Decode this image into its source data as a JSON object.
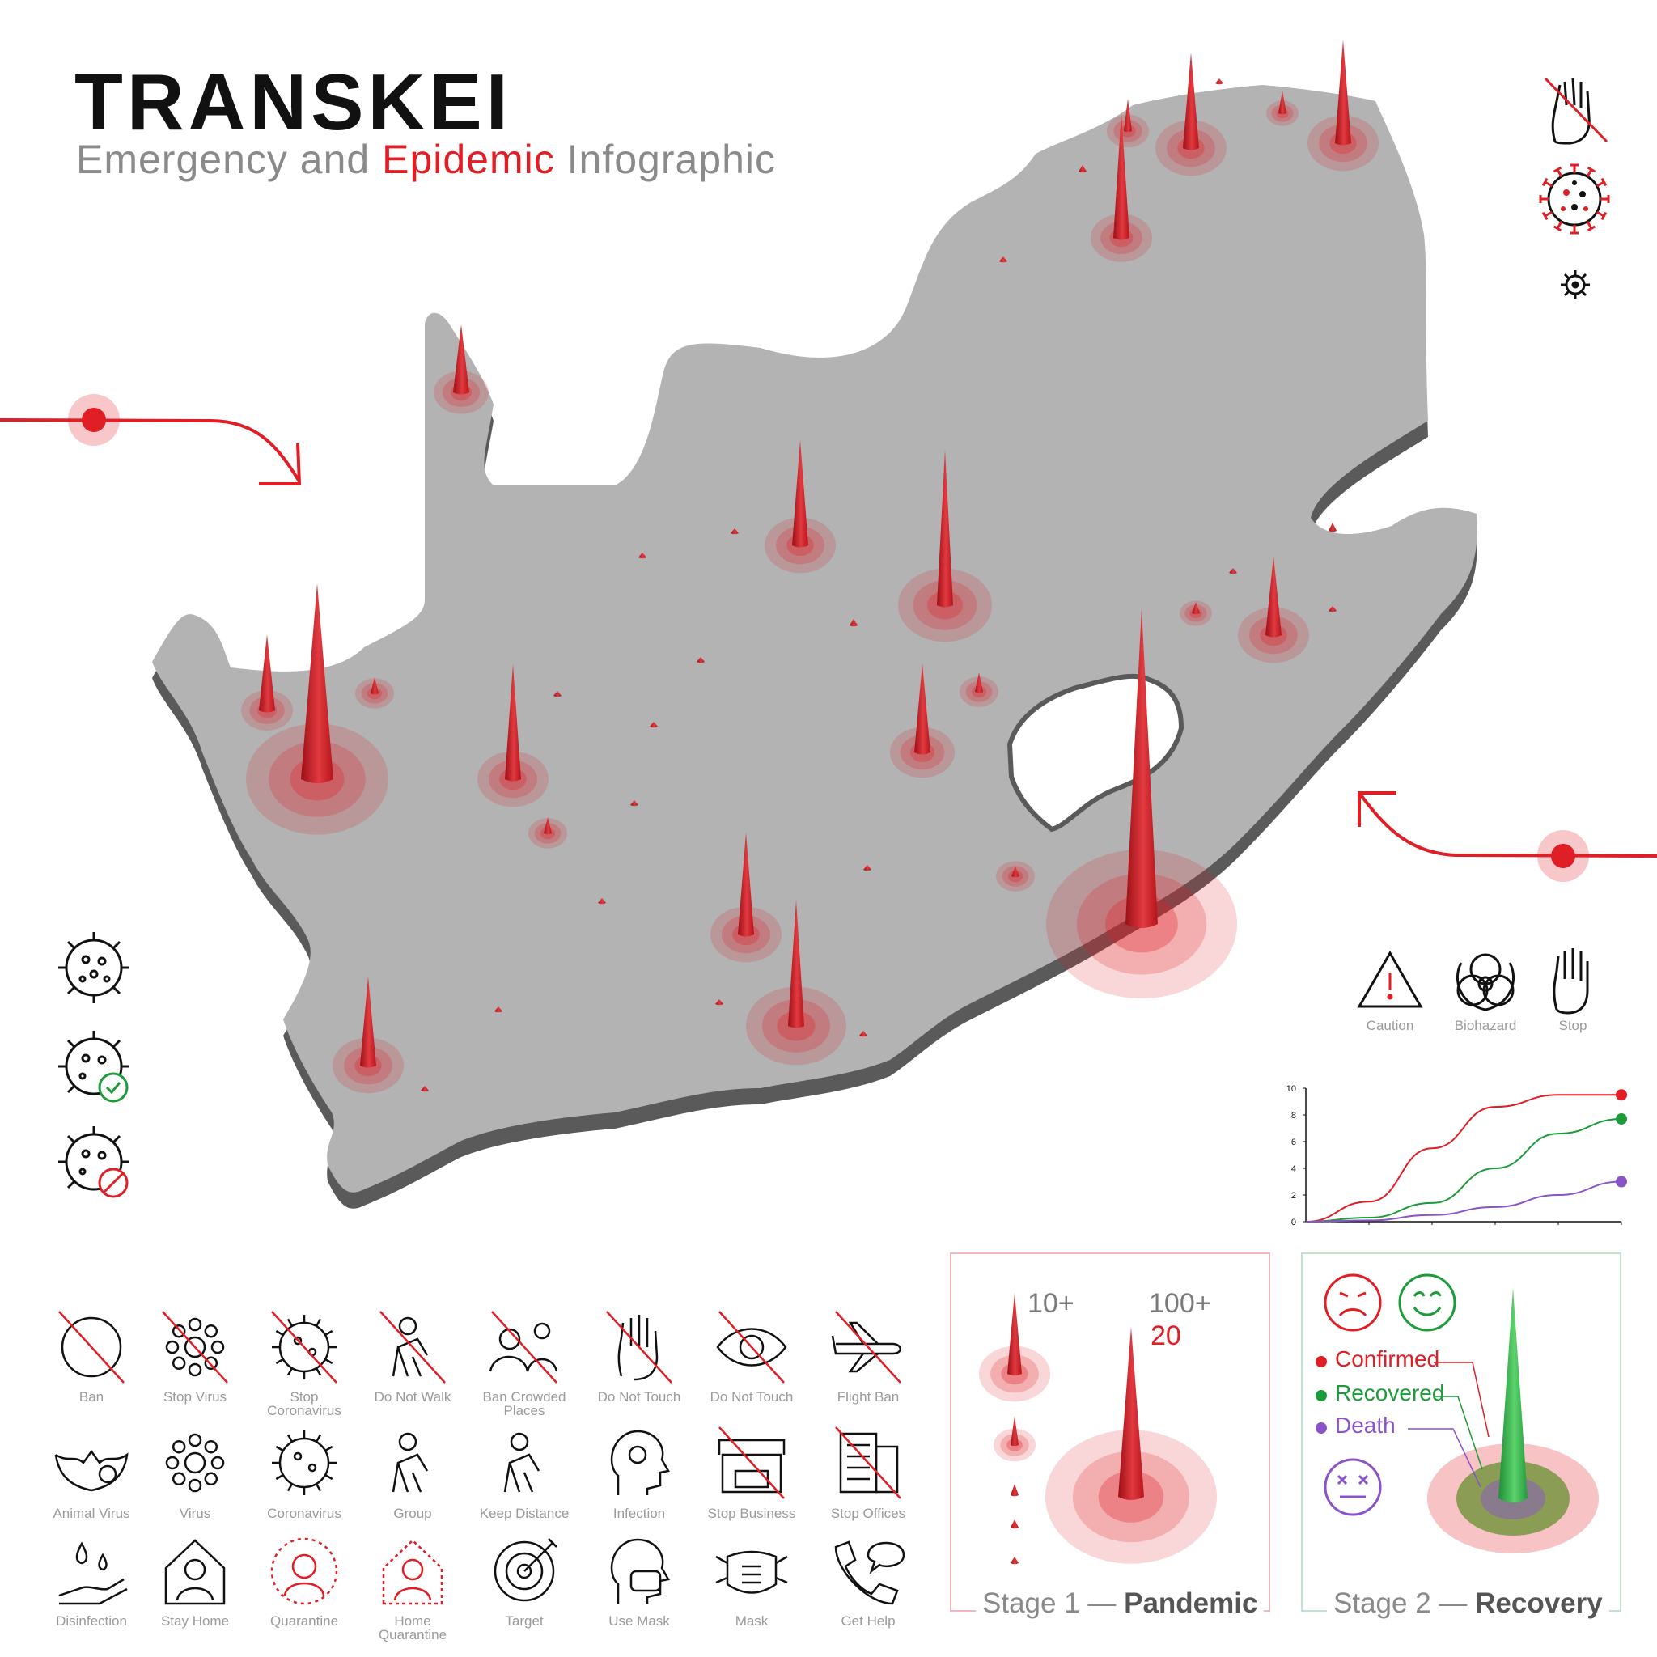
{
  "header": {
    "title": "TRANSKEI",
    "subtitle_pre": "Emergency and ",
    "subtitle_accent": "Epidemic",
    "subtitle_post": " Infographic"
  },
  "colors": {
    "accent": "#e01e26",
    "map_fill": "#b3b3b3",
    "map_shadow": "#5c5c5c",
    "confirmed": "#e01e26",
    "recovered": "#1c9b3a",
    "death": "#8a54c8"
  },
  "hazard_icons": [
    {
      "icon": "caution-icon",
      "label": "Caution"
    },
    {
      "icon": "biohazard-icon",
      "label": "Biohazard"
    },
    {
      "icon": "stop-hand-icon",
      "label": "Stop"
    }
  ],
  "mini_chart": {
    "chart_data": {
      "type": "line",
      "ylim": [
        0,
        10
      ],
      "yticks": [
        "0",
        "2",
        "4",
        "6",
        "8",
        "10"
      ],
      "series": [
        {
          "color": "#e01e26",
          "x": [
            0,
            1,
            2,
            3,
            4,
            5
          ],
          "values": [
            0,
            1.5,
            5.5,
            8.6,
            9.5,
            9.5
          ]
        },
        {
          "color": "#1c9b3a",
          "x": [
            0,
            1,
            2,
            3,
            4,
            5
          ],
          "values": [
            0,
            0.3,
            1.4,
            4.0,
            6.6,
            7.7
          ]
        },
        {
          "color": "#8a54c8",
          "x": [
            0,
            1,
            2,
            3,
            4,
            5
          ],
          "values": [
            0,
            0.1,
            0.5,
            1.1,
            2.0,
            3.0
          ]
        }
      ]
    }
  },
  "icon_grid": [
    {
      "icon": "ban-icon",
      "label": "Ban"
    },
    {
      "icon": "stop-virus-icon",
      "label": "Stop Virus"
    },
    {
      "icon": "stop-coronavirus-icon",
      "label": "Stop\nCoronavirus"
    },
    {
      "icon": "do-not-walk-icon",
      "label": "Do Not Walk"
    },
    {
      "icon": "ban-crowded-places-icon",
      "label": "Ban Crowded\nPlaces"
    },
    {
      "icon": "do-not-touch-hand-icon",
      "label": "Do Not Touch"
    },
    {
      "icon": "do-not-touch-eye-icon",
      "label": "Do Not Touch"
    },
    {
      "icon": "flight-ban-icon",
      "label": "Flight Ban"
    },
    {
      "icon": "animal-virus-icon",
      "label": "Animal Virus"
    },
    {
      "icon": "virus-icon",
      "label": "Virus"
    },
    {
      "icon": "coronavirus-icon",
      "label": "Coronavirus"
    },
    {
      "icon": "group-icon",
      "label": "Group"
    },
    {
      "icon": "keep-distance-icon",
      "label": "Keep Distance"
    },
    {
      "icon": "infection-icon",
      "label": "Infection"
    },
    {
      "icon": "stop-business-icon",
      "label": "Stop Business"
    },
    {
      "icon": "stop-offices-icon",
      "label": "Stop Offices"
    },
    {
      "icon": "disinfection-icon",
      "label": "Disinfection"
    },
    {
      "icon": "stay-home-icon",
      "label": "Stay Home"
    },
    {
      "icon": "quarantine-icon",
      "label": "Quarantine"
    },
    {
      "icon": "home-quarantine-icon",
      "label": "Home\nQuarantine"
    },
    {
      "icon": "target-icon",
      "label": "Target"
    },
    {
      "icon": "use-mask-icon",
      "label": "Use Mask"
    },
    {
      "icon": "mask-icon",
      "label": "Mask"
    },
    {
      "icon": "get-help-icon",
      "label": "Get Help"
    }
  ],
  "stage1": {
    "label_small": "10+",
    "label_big": "100+",
    "label_count": "20",
    "caption_pre": "Stage 1 — ",
    "caption_bold": "Pandemic"
  },
  "stage2": {
    "confirmed": "Confirmed",
    "recovered": "Recovered",
    "death": "Death",
    "caption_pre": "Stage 2 — ",
    "caption_bold": "Recovery"
  }
}
